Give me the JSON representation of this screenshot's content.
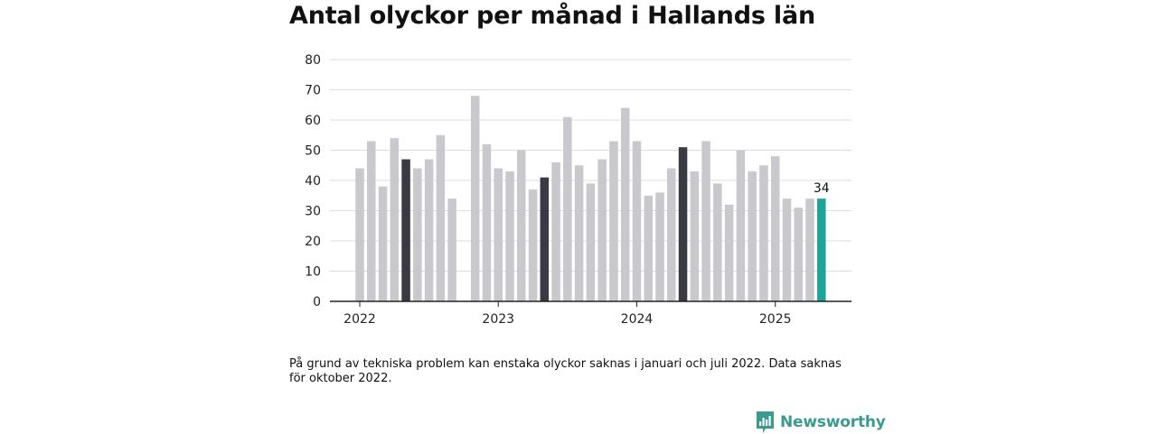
{
  "title": "Antal olyckor per månad i Hallands län",
  "note": "På grund av tekniska problem kan enstaka olyckor saknas i januari och juli 2022. Data saknas för oktober 2022.",
  "brand": {
    "name": "Newsworthy",
    "icon": "newsworthy-logo-icon"
  },
  "colors": {
    "default": "#c8c8cd",
    "highlight": "#3a3a45",
    "latest": "#1ea59a",
    "axis": "#222222",
    "grid": "#dddddd"
  },
  "chart_data": {
    "type": "bar",
    "title": "Antal olyckor per månad i Hallands län",
    "xlabel": "",
    "ylabel": "",
    "ylim": [
      0,
      80
    ],
    "yticks": [
      0,
      10,
      20,
      30,
      40,
      50,
      60,
      70,
      80
    ],
    "grid": true,
    "year_labels": [
      "2022",
      "2023",
      "2024",
      "2025"
    ],
    "categories": [
      "2022-01",
      "2022-02",
      "2022-03",
      "2022-04",
      "2022-05",
      "2022-06",
      "2022-07",
      "2022-08",
      "2022-09",
      "2022-10",
      "2022-11",
      "2022-12",
      "2023-01",
      "2023-02",
      "2023-03",
      "2023-04",
      "2023-05",
      "2023-06",
      "2023-07",
      "2023-08",
      "2023-09",
      "2023-10",
      "2023-11",
      "2023-12",
      "2024-01",
      "2024-02",
      "2024-03",
      "2024-04",
      "2024-05",
      "2024-06",
      "2024-07",
      "2024-08",
      "2024-09",
      "2024-10",
      "2024-11",
      "2024-12",
      "2025-01",
      "2025-02",
      "2025-03",
      "2025-04",
      "2025-05"
    ],
    "values": [
      44,
      53,
      38,
      54,
      47,
      44,
      47,
      55,
      34,
      null,
      68,
      52,
      44,
      43,
      50,
      37,
      41,
      46,
      61,
      45,
      39,
      47,
      53,
      64,
      53,
      35,
      36,
      44,
      51,
      43,
      53,
      39,
      32,
      50,
      43,
      45,
      48,
      34,
      31,
      34,
      34
    ],
    "highlighted_months": [
      "2022-05",
      "2023-05",
      "2024-05"
    ],
    "latest_month": "2025-05",
    "data_labels": [
      {
        "category": "2025-05",
        "text": "34"
      }
    ]
  }
}
